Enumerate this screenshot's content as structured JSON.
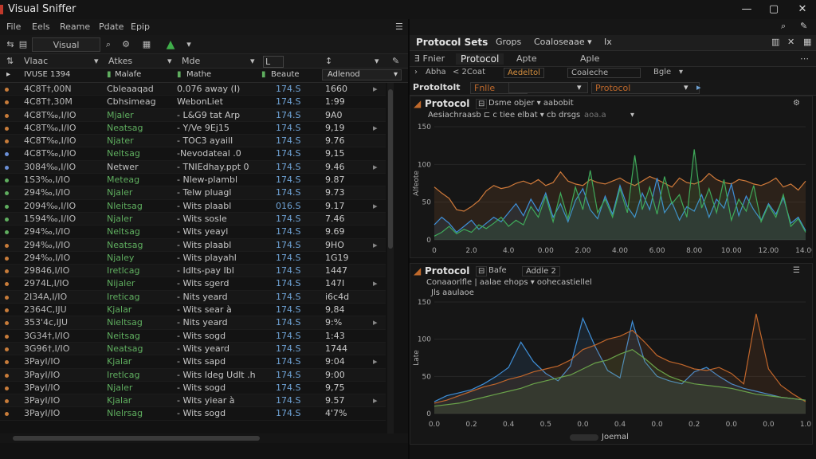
{
  "app": {
    "title": "Visual Sniffer",
    "window_controls": [
      "—",
      "▢",
      "✕"
    ]
  },
  "menu": [
    "File",
    "Eels",
    "Reame",
    "Pdate",
    "Epip"
  ],
  "toolbar": {
    "app_label": "Visual Sniffer"
  },
  "packet_list": {
    "columns": [
      "Vlaac",
      "Atkes",
      "Mde",
      "L"
    ],
    "filter_row": [
      "IVUSE 1394",
      "Malafe",
      "Mathe",
      "Beaute",
      "Adlenod"
    ],
    "rows": [
      {
        "no": "4C8T†,00N",
        "src": "Cbleaaqad",
        "info": "0.076 away (I)",
        "len": "174.S",
        "t": "1660",
        "dot": "#c87c3a",
        "src_color": "#c0c0c0"
      },
      {
        "no": "4C8T†,30M",
        "src": "Cbhsimeag",
        "info": "WebonLiet",
        "len": "174.S",
        "t": "1:99",
        "dot": "#c87c3a",
        "src_color": "#c0c0c0"
      },
      {
        "no": "4C8T‰,I/IO",
        "src": "Mjaler",
        "info": "- L&G9 tat Arp",
        "len": "174.S",
        "t": "9A0",
        "dot": "#c87c3a",
        "src_color": "#5fae5f"
      },
      {
        "no": "4C8T‰,I/IO",
        "src": "Neatsag",
        "info": "- Y/Ve 9Ej15",
        "len": "174.S",
        "t": "9,19",
        "dot": "#c87c3a",
        "src_color": "#5fae5f"
      },
      {
        "no": "4C8T‰,I/IO",
        "src": "Njater",
        "info": "- TOC3 ayaill",
        "len": "174.S",
        "t": "9.76",
        "dot": "#c87c3a",
        "src_color": "#5fae5f"
      },
      {
        "no": "4C8T‰,I/IO",
        "src": "Neltsag",
        "info": "-Nevodateal .0",
        "len": "174.S",
        "t": "9,15",
        "dot": "#6b8fd6",
        "src_color": "#5fae5f"
      },
      {
        "no": "3084‰,I/IO",
        "src": "Netwer",
        "info": "- TNIEdhay.ppt 0",
        "len": "174.S",
        "t": "9.46",
        "dot": "#6b8fd6",
        "src_color": "#c0c0c0"
      },
      {
        "no": "1S3‰,I/IO",
        "src": "Meteag",
        "info": "- Nlew-plambl",
        "len": "174.S",
        "t": "9.87",
        "dot": "#5fae5f",
        "src_color": "#5fae5f"
      },
      {
        "no": "294‰,I/IO",
        "src": "Njaler",
        "info": "- Telw pluagl",
        "len": "174.S",
        "t": "9.73",
        "dot": "#5fae5f",
        "src_color": "#5fae5f"
      },
      {
        "no": "2094‰,I/IO",
        "src": "Nleitsag",
        "info": "- Wits plaabl",
        "len": "016.S",
        "t": "9.17",
        "dot": "#5fae5f",
        "src_color": "#5fae5f"
      },
      {
        "no": "1594‰,I/IO",
        "src": "Njaler",
        "info": "- Wits sosle",
        "len": "174.S",
        "t": "7.46",
        "dot": "#5fae5f",
        "src_color": "#5fae5f"
      },
      {
        "no": "294‰,I/IO",
        "src": "Neltsag",
        "info": "- Wits yeayl",
        "len": "174.S",
        "t": "9.69",
        "dot": "#5fae5f",
        "src_color": "#5fae5f"
      },
      {
        "no": "294‰,I/IO",
        "src": "Neatsag",
        "info": "- Wits plaabl",
        "len": "174.S",
        "t": "9HO",
        "dot": "#c87c3a",
        "src_color": "#5fae5f"
      },
      {
        "no": "294‰,I/IO",
        "src": "Njaley",
        "info": "- Wits playahl",
        "len": "174.S",
        "t": "1G19",
        "dot": "#c87c3a",
        "src_color": "#5fae5f"
      },
      {
        "no": "29846,I/IO",
        "src": "Iretlcag",
        "info": "- Idlts-pay Ibl",
        "len": "174.S",
        "t": "1447",
        "dot": "#c87c3a",
        "src_color": "#5fae5f"
      },
      {
        "no": "2974L,I/IO",
        "src": "Nijaler",
        "info": "- Wits sgerd",
        "len": "174.S",
        "t": "147I",
        "dot": "#c87c3a",
        "src_color": "#5fae5f"
      },
      {
        "no": "2I34A,I/IO",
        "src": "Ireticag",
        "info": "- Nits yeard",
        "len": "174.S",
        "t": "i6c4d",
        "dot": "#c87c3a",
        "src_color": "#5fae5f"
      },
      {
        "no": "2364C,IJU",
        "src": "Kjalar",
        "info": "- Wits sear à",
        "len": "174.S",
        "t": "9,84",
        "dot": "#c87c3a",
        "src_color": "#5fae5f"
      },
      {
        "no": "353'4c,IJU",
        "src": "Nieltsag",
        "info": "- Nits yeard",
        "len": "174.S",
        "t": "9:%",
        "dot": "#c87c3a",
        "src_color": "#5fae5f"
      },
      {
        "no": "3G34†,I/IO",
        "src": "Neitsag",
        "info": "- Wits sogd",
        "len": "174.S",
        "t": "1:43",
        "dot": "#c87c3a",
        "src_color": "#5fae5f"
      },
      {
        "no": "3G96†,I/IO",
        "src": "Neatsag",
        "info": "- Wits yeard",
        "len": "174.S",
        "t": "1744",
        "dot": "#c87c3a",
        "src_color": "#5fae5f"
      },
      {
        "no": "3PayI/IO",
        "src": "Kjalar",
        "info": "- Wits sapd",
        "len": "174.S",
        "t": "9:04",
        "dot": "#c87c3a",
        "src_color": "#5fae5f"
      },
      {
        "no": "3PayI/IO",
        "src": "Iretlcag",
        "info": "- Wits Ideg Udlt .h",
        "len": "174.S",
        "t": "9:00",
        "dot": "#c87c3a",
        "src_color": "#5fae5f"
      },
      {
        "no": "3PayI/IO",
        "src": "Njaler",
        "info": "- Wits sogd",
        "len": "174.S",
        "t": "9,75",
        "dot": "#c87c3a",
        "src_color": "#5fae5f"
      },
      {
        "no": "3PayI/IO",
        "src": "Kjalar",
        "info": "- Wits yiear à",
        "len": "174.S",
        "t": "9.57",
        "dot": "#c87c3a",
        "src_color": "#5fae5f"
      },
      {
        "no": "3PayI/IO",
        "src": "Nlelrsag",
        "info": "- Wits sogd",
        "len": "174.S",
        "t": "4'7%",
        "dot": "#c87c3a",
        "src_color": "#5fae5f"
      }
    ]
  },
  "right_panel": {
    "tabs": [
      "Protocol Sets",
      "Grops",
      "Coaloseaae ▾",
      "Ix"
    ],
    "sub_tabs": [
      "Ǝ Fnier",
      "Protocol",
      "Apte",
      "Aple"
    ],
    "sub2": [
      "Abha",
      "< 2Coat",
      "Aedeltol",
      "Coaleche",
      "Bgle"
    ],
    "sub3": [
      "Protoltolt",
      "Fnlle",
      "Protocol"
    ],
    "colors": {
      "accent": "#c0692b",
      "blue": "#3f8fd8",
      "green": "#3faa5a",
      "orange": "#d07a3a"
    }
  },
  "chart_top": {
    "title": "Protocol",
    "subtitle_a": "Dsme objer ▾  aabobit",
    "subtitle_b": "Aesiachraasb  ⊏  c  tiee  elbat  ▾  cb  drsgs",
    "subtitle_c": "aoa.a",
    "y_label": "Alfeote"
  },
  "chart_bottom": {
    "title": "Protocol",
    "tab_a": "Bafe",
    "tab_b": "Addle 2",
    "subtitle_a": "Conaaorlfle  |  aalae ehops ▾  oohecastiellel",
    "subtitle_b": "Jls aaulaoe",
    "y_label": "Late",
    "footer": "Joemal"
  },
  "chart_data": [
    {
      "type": "line",
      "title": "Protocol",
      "ylabel": "Alfeote",
      "xticks": [
        "0",
        "2.0",
        "4.0",
        "0.00",
        "2.00",
        "4.00",
        "6.00",
        "8.00",
        "10.00",
        "12.00",
        "14.00"
      ],
      "yticks": [
        "0",
        "50",
        "100",
        "150"
      ],
      "ylim": [
        0,
        150
      ],
      "series": [
        {
          "name": "orange",
          "color": "#d07a3a",
          "values": [
            70,
            62,
            55,
            40,
            38,
            44,
            52,
            65,
            72,
            68,
            70,
            75,
            78,
            74,
            80,
            72,
            76,
            90,
            78,
            74,
            72,
            80,
            76,
            74,
            78,
            82,
            76,
            72,
            78,
            84,
            80,
            75,
            70,
            82,
            76,
            74,
            78,
            88,
            80,
            76,
            74,
            80,
            78,
            74,
            72,
            76,
            82,
            70,
            74,
            66,
            78
          ]
        },
        {
          "name": "blue",
          "color": "#3f8fd8",
          "values": [
            20,
            30,
            22,
            10,
            18,
            26,
            14,
            22,
            30,
            24,
            36,
            48,
            32,
            54,
            38,
            62,
            30,
            48,
            24,
            52,
            68,
            40,
            28,
            58,
            34,
            72,
            44,
            30,
            62,
            40,
            82,
            36,
            50,
            26,
            44,
            38,
            60,
            30,
            54,
            42,
            74,
            32,
            58,
            40,
            26,
            48,
            34,
            56,
            22,
            30,
            12
          ]
        },
        {
          "name": "green",
          "color": "#3faa5a",
          "values": [
            5,
            10,
            18,
            8,
            14,
            10,
            20,
            15,
            22,
            30,
            18,
            26,
            20,
            44,
            30,
            58,
            24,
            62,
            28,
            70,
            40,
            92,
            36,
            54,
            30,
            68,
            36,
            112,
            40,
            70,
            34,
            84,
            48,
            60,
            30,
            120,
            42,
            68,
            36,
            80,
            26,
            54,
            38,
            72,
            24,
            46,
            30,
            60,
            18,
            28,
            10
          ]
        }
      ]
    },
    {
      "type": "line",
      "title": "Protocol",
      "ylabel": "Late",
      "xticks": [
        "0.0",
        "0.2",
        "0.4",
        "0.5",
        "0.0",
        "0.4",
        "0.0",
        "0.2",
        "0.0",
        "0.0",
        "1.0"
      ],
      "yticks": [
        "0",
        "50",
        "100",
        "150"
      ],
      "ylim": [
        0,
        150
      ],
      "series": [
        {
          "name": "blue",
          "color": "#3f8fd8",
          "values": [
            16,
            24,
            28,
            32,
            40,
            50,
            62,
            96,
            70,
            54,
            44,
            64,
            128,
            90,
            58,
            48,
            124,
            70,
            50,
            44,
            40,
            56,
            62,
            50,
            40,
            34,
            30,
            26,
            22,
            20,
            18
          ]
        },
        {
          "name": "orange",
          "color": "#c0662b",
          "values": [
            14,
            18,
            24,
            30,
            36,
            40,
            46,
            50,
            56,
            60,
            64,
            72,
            86,
            92,
            100,
            104,
            112,
            96,
            78,
            70,
            66,
            60,
            58,
            62,
            54,
            40,
            134,
            60,
            38,
            26,
            16
          ]
        },
        {
          "name": "green",
          "color": "#6aa34a",
          "values": [
            10,
            12,
            14,
            18,
            22,
            26,
            30,
            34,
            40,
            44,
            48,
            52,
            60,
            68,
            72,
            80,
            86,
            74,
            60,
            50,
            44,
            40,
            38,
            36,
            34,
            30,
            26,
            24,
            22,
            20,
            18
          ]
        }
      ]
    }
  ]
}
